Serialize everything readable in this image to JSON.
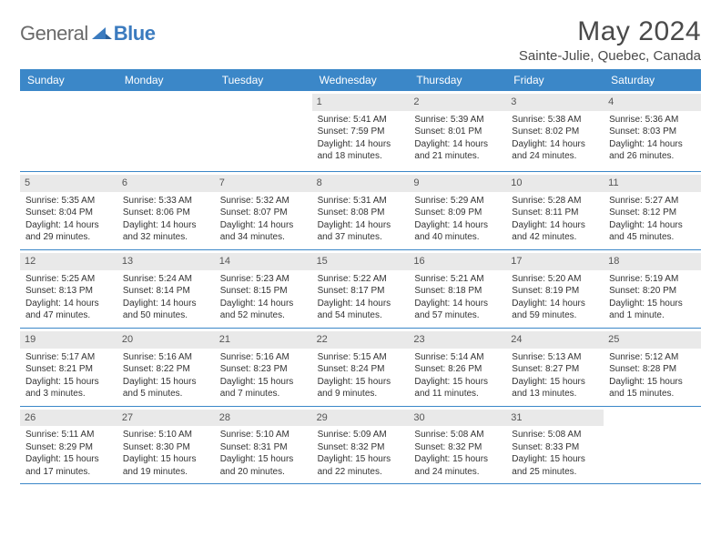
{
  "logo": {
    "general": "General",
    "blue": "Blue"
  },
  "title": "May 2024",
  "location": "Sainte-Julie, Quebec, Canada",
  "colors": {
    "header_bg": "#3b87c8",
    "header_text": "#ffffff",
    "daynum_bg": "#e9e9e9",
    "row_border": "#3b87c8",
    "logo_blue": "#3b7bbf",
    "logo_gray": "#6a6a6a"
  },
  "dayNames": [
    "Sunday",
    "Monday",
    "Tuesday",
    "Wednesday",
    "Thursday",
    "Friday",
    "Saturday"
  ],
  "weeks": [
    [
      {
        "num": "",
        "sunrise": "",
        "sunset": "",
        "daylight": ""
      },
      {
        "num": "",
        "sunrise": "",
        "sunset": "",
        "daylight": ""
      },
      {
        "num": "",
        "sunrise": "",
        "sunset": "",
        "daylight": ""
      },
      {
        "num": "1",
        "sunrise": "Sunrise: 5:41 AM",
        "sunset": "Sunset: 7:59 PM",
        "daylight": "Daylight: 14 hours and 18 minutes."
      },
      {
        "num": "2",
        "sunrise": "Sunrise: 5:39 AM",
        "sunset": "Sunset: 8:01 PM",
        "daylight": "Daylight: 14 hours and 21 minutes."
      },
      {
        "num": "3",
        "sunrise": "Sunrise: 5:38 AM",
        "sunset": "Sunset: 8:02 PM",
        "daylight": "Daylight: 14 hours and 24 minutes."
      },
      {
        "num": "4",
        "sunrise": "Sunrise: 5:36 AM",
        "sunset": "Sunset: 8:03 PM",
        "daylight": "Daylight: 14 hours and 26 minutes."
      }
    ],
    [
      {
        "num": "5",
        "sunrise": "Sunrise: 5:35 AM",
        "sunset": "Sunset: 8:04 PM",
        "daylight": "Daylight: 14 hours and 29 minutes."
      },
      {
        "num": "6",
        "sunrise": "Sunrise: 5:33 AM",
        "sunset": "Sunset: 8:06 PM",
        "daylight": "Daylight: 14 hours and 32 minutes."
      },
      {
        "num": "7",
        "sunrise": "Sunrise: 5:32 AM",
        "sunset": "Sunset: 8:07 PM",
        "daylight": "Daylight: 14 hours and 34 minutes."
      },
      {
        "num": "8",
        "sunrise": "Sunrise: 5:31 AM",
        "sunset": "Sunset: 8:08 PM",
        "daylight": "Daylight: 14 hours and 37 minutes."
      },
      {
        "num": "9",
        "sunrise": "Sunrise: 5:29 AM",
        "sunset": "Sunset: 8:09 PM",
        "daylight": "Daylight: 14 hours and 40 minutes."
      },
      {
        "num": "10",
        "sunrise": "Sunrise: 5:28 AM",
        "sunset": "Sunset: 8:11 PM",
        "daylight": "Daylight: 14 hours and 42 minutes."
      },
      {
        "num": "11",
        "sunrise": "Sunrise: 5:27 AM",
        "sunset": "Sunset: 8:12 PM",
        "daylight": "Daylight: 14 hours and 45 minutes."
      }
    ],
    [
      {
        "num": "12",
        "sunrise": "Sunrise: 5:25 AM",
        "sunset": "Sunset: 8:13 PM",
        "daylight": "Daylight: 14 hours and 47 minutes."
      },
      {
        "num": "13",
        "sunrise": "Sunrise: 5:24 AM",
        "sunset": "Sunset: 8:14 PM",
        "daylight": "Daylight: 14 hours and 50 minutes."
      },
      {
        "num": "14",
        "sunrise": "Sunrise: 5:23 AM",
        "sunset": "Sunset: 8:15 PM",
        "daylight": "Daylight: 14 hours and 52 minutes."
      },
      {
        "num": "15",
        "sunrise": "Sunrise: 5:22 AM",
        "sunset": "Sunset: 8:17 PM",
        "daylight": "Daylight: 14 hours and 54 minutes."
      },
      {
        "num": "16",
        "sunrise": "Sunrise: 5:21 AM",
        "sunset": "Sunset: 8:18 PM",
        "daylight": "Daylight: 14 hours and 57 minutes."
      },
      {
        "num": "17",
        "sunrise": "Sunrise: 5:20 AM",
        "sunset": "Sunset: 8:19 PM",
        "daylight": "Daylight: 14 hours and 59 minutes."
      },
      {
        "num": "18",
        "sunrise": "Sunrise: 5:19 AM",
        "sunset": "Sunset: 8:20 PM",
        "daylight": "Daylight: 15 hours and 1 minute."
      }
    ],
    [
      {
        "num": "19",
        "sunrise": "Sunrise: 5:17 AM",
        "sunset": "Sunset: 8:21 PM",
        "daylight": "Daylight: 15 hours and 3 minutes."
      },
      {
        "num": "20",
        "sunrise": "Sunrise: 5:16 AM",
        "sunset": "Sunset: 8:22 PM",
        "daylight": "Daylight: 15 hours and 5 minutes."
      },
      {
        "num": "21",
        "sunrise": "Sunrise: 5:16 AM",
        "sunset": "Sunset: 8:23 PM",
        "daylight": "Daylight: 15 hours and 7 minutes."
      },
      {
        "num": "22",
        "sunrise": "Sunrise: 5:15 AM",
        "sunset": "Sunset: 8:24 PM",
        "daylight": "Daylight: 15 hours and 9 minutes."
      },
      {
        "num": "23",
        "sunrise": "Sunrise: 5:14 AM",
        "sunset": "Sunset: 8:26 PM",
        "daylight": "Daylight: 15 hours and 11 minutes."
      },
      {
        "num": "24",
        "sunrise": "Sunrise: 5:13 AM",
        "sunset": "Sunset: 8:27 PM",
        "daylight": "Daylight: 15 hours and 13 minutes."
      },
      {
        "num": "25",
        "sunrise": "Sunrise: 5:12 AM",
        "sunset": "Sunset: 8:28 PM",
        "daylight": "Daylight: 15 hours and 15 minutes."
      }
    ],
    [
      {
        "num": "26",
        "sunrise": "Sunrise: 5:11 AM",
        "sunset": "Sunset: 8:29 PM",
        "daylight": "Daylight: 15 hours and 17 minutes."
      },
      {
        "num": "27",
        "sunrise": "Sunrise: 5:10 AM",
        "sunset": "Sunset: 8:30 PM",
        "daylight": "Daylight: 15 hours and 19 minutes."
      },
      {
        "num": "28",
        "sunrise": "Sunrise: 5:10 AM",
        "sunset": "Sunset: 8:31 PM",
        "daylight": "Daylight: 15 hours and 20 minutes."
      },
      {
        "num": "29",
        "sunrise": "Sunrise: 5:09 AM",
        "sunset": "Sunset: 8:32 PM",
        "daylight": "Daylight: 15 hours and 22 minutes."
      },
      {
        "num": "30",
        "sunrise": "Sunrise: 5:08 AM",
        "sunset": "Sunset: 8:32 PM",
        "daylight": "Daylight: 15 hours and 24 minutes."
      },
      {
        "num": "31",
        "sunrise": "Sunrise: 5:08 AM",
        "sunset": "Sunset: 8:33 PM",
        "daylight": "Daylight: 15 hours and 25 minutes."
      },
      {
        "num": "",
        "sunrise": "",
        "sunset": "",
        "daylight": ""
      }
    ]
  ]
}
